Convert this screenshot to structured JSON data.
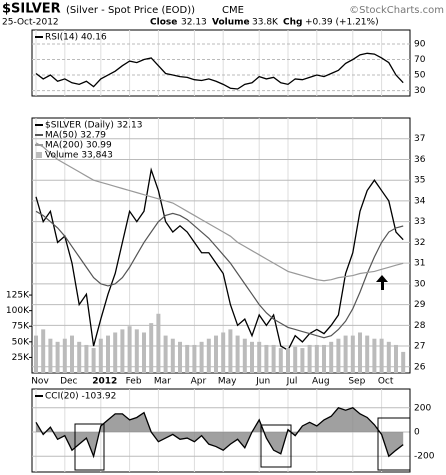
{
  "header": {
    "symbol": "$SILVER",
    "name": "(Silver - Spot Price (EOD))",
    "exchange": "CME",
    "brand": "©StockCharts.com",
    "date": "25-Oct-2012",
    "close_label": "Close",
    "close": "32.13",
    "volume_label": "Volume",
    "volume": "33.8K",
    "chg_label": "Chg",
    "chg": "+0.39 (+1.21%)"
  },
  "chart_data": [
    {
      "type": "line",
      "ylim": [
        23,
        108
      ],
      "yticks": [
        30,
        50,
        70,
        90
      ],
      "grid": true,
      "series": [
        {
          "name": "RSI(14) 40.16",
          "color": "#000000",
          "values": [
            52,
            45,
            50,
            42,
            45,
            40,
            38,
            42,
            35,
            45,
            50,
            55,
            62,
            68,
            66,
            70,
            72,
            62,
            52,
            50,
            48,
            47,
            44,
            43,
            45,
            42,
            38,
            33,
            32,
            38,
            40,
            48,
            45,
            47,
            40,
            38,
            45,
            44,
            47,
            50,
            48,
            52,
            56,
            65,
            70,
            76,
            78,
            77,
            72,
            66,
            50,
            40.16
          ]
        }
      ]
    },
    {
      "type": "line",
      "grid": true,
      "categories": [
        "Nov",
        null,
        null,
        null,
        "Dec",
        null,
        null,
        null,
        null,
        "2012",
        null,
        null,
        null,
        "Feb",
        null,
        null,
        null,
        "Mar",
        null,
        null,
        null,
        null,
        "Apr",
        null,
        null,
        null,
        "May",
        null,
        null,
        null,
        null,
        "Jun",
        null,
        null,
        null,
        "Jul",
        null,
        null,
        null,
        "Aug",
        null,
        null,
        null,
        null,
        "Sep",
        null,
        null,
        null,
        "Oct",
        null,
        null,
        null
      ],
      "ylim": [
        25.7,
        38.0
      ],
      "yticks": [
        26,
        27,
        28,
        29,
        30,
        31,
        32,
        33,
        34,
        35,
        36,
        37
      ],
      "y2lim": [
        0,
        409000
      ],
      "y2ticks": [
        {
          "value": 25000,
          "label": "25K"
        },
        {
          "value": 50000,
          "label": "50K"
        },
        {
          "value": 75000,
          "label": "75K"
        },
        {
          "value": 100000,
          "label": "100K"
        },
        {
          "value": 125000,
          "label": "125K"
        }
      ],
      "series": [
        {
          "name": "$SILVER (Daily) 32.13",
          "color": "#000000",
          "values": [
            34.2,
            33.0,
            33.5,
            32.0,
            32.3,
            31.0,
            29.0,
            29.5,
            27.0,
            28.3,
            29.5,
            30.5,
            32.0,
            33.5,
            33.0,
            33.5,
            35.5,
            34.5,
            33.0,
            32.5,
            32.8,
            32.5,
            32.0,
            31.5,
            31.5,
            31.0,
            30.5,
            29.0,
            28.0,
            28.3,
            27.5,
            28.5,
            28.0,
            28.5,
            27.0,
            26.8,
            27.5,
            27.2,
            27.6,
            27.8,
            27.6,
            28.0,
            28.5,
            30.5,
            31.5,
            33.5,
            34.5,
            35.0,
            34.5,
            34.0,
            32.5,
            32.13
          ]
        },
        {
          "name": "MA(50) 32.79",
          "color": "#555555",
          "values": [
            33.5,
            33.3,
            33.0,
            32.7,
            32.3,
            31.8,
            31.3,
            30.8,
            30.3,
            30.0,
            29.9,
            30.0,
            30.3,
            30.8,
            31.4,
            32.0,
            32.5,
            33.0,
            33.3,
            33.4,
            33.3,
            33.1,
            32.8,
            32.5,
            32.2,
            31.8,
            31.4,
            31.0,
            30.5,
            30.0,
            29.5,
            29.0,
            28.6,
            28.3,
            28.1,
            27.9,
            27.8,
            27.7,
            27.6,
            27.5,
            27.4,
            27.5,
            27.8,
            28.2,
            28.8,
            29.6,
            30.5,
            31.3,
            32.0,
            32.5,
            32.7,
            32.79
          ]
        },
        {
          "name": "MA(200) 30.99",
          "color": "#999999",
          "values": [
            36.8,
            36.6,
            36.3,
            36.0,
            35.8,
            35.6,
            35.4,
            35.2,
            35.0,
            34.9,
            34.8,
            34.7,
            34.6,
            34.5,
            34.4,
            34.3,
            34.2,
            34.1,
            34.0,
            33.9,
            33.7,
            33.5,
            33.3,
            33.1,
            32.9,
            32.7,
            32.5,
            32.3,
            32.0,
            31.8,
            31.6,
            31.4,
            31.2,
            31.0,
            30.8,
            30.6,
            30.5,
            30.4,
            30.3,
            30.2,
            30.15,
            30.2,
            30.3,
            30.35,
            30.4,
            30.5,
            30.55,
            30.6,
            30.7,
            30.8,
            30.9,
            30.99
          ]
        },
        {
          "name": "Volume 33,843",
          "color": "#bbbbbb",
          "type": "bar",
          "axis": "y2",
          "values": [
            60000,
            70000,
            55000,
            50000,
            55000,
            60000,
            50000,
            45000,
            40000,
            55000,
            60000,
            65000,
            70000,
            75000,
            70000,
            65000,
            80000,
            95000,
            60000,
            55000,
            50000,
            45000,
            45000,
            50000,
            55000,
            60000,
            65000,
            70000,
            60000,
            55000,
            50000,
            50000,
            45000,
            45000,
            40000,
            40000,
            42000,
            40000,
            45000,
            45000,
            45000,
            50000,
            55000,
            60000,
            60000,
            65000,
            60000,
            55000,
            55000,
            50000,
            45000,
            33843
          ]
        }
      ]
    },
    {
      "type": "line",
      "ylim": [
        -330,
        355
      ],
      "yticks": [
        -200,
        0,
        200
      ],
      "grid": true,
      "series": [
        {
          "name": "CCI(20) -103.92",
          "color": "#000000",
          "fill": "#888888",
          "values": [
            80,
            -20,
            40,
            -60,
            -30,
            -150,
            -100,
            -50,
            -200,
            50,
            100,
            150,
            150,
            100,
            120,
            160,
            0,
            -80,
            -50,
            -20,
            -60,
            -50,
            -80,
            -30,
            -100,
            -120,
            -150,
            -100,
            -60,
            -130,
            0,
            100,
            -50,
            -150,
            -180,
            20,
            -30,
            50,
            80,
            50,
            100,
            130,
            200,
            180,
            200,
            150,
            120,
            60,
            -20,
            -200,
            -150,
            -103.92
          ]
        }
      ]
    }
  ]
}
